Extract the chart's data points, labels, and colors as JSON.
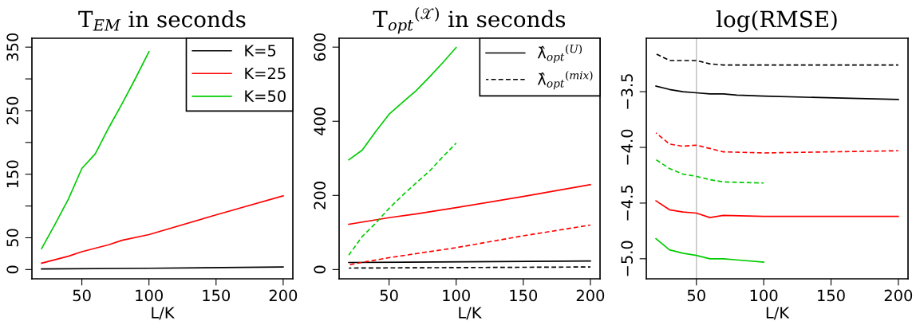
{
  "chart_data": [
    {
      "type": "line",
      "title": "T$_{EM}$ in seconds",
      "xlabel": "L/K",
      "xlim": [
        12.8,
        207.2
      ],
      "xticks": [
        50,
        100,
        150,
        200
      ],
      "ylim": [
        -14.6,
        364
      ],
      "yticks": [
        0,
        50,
        {
          "value": 100,
          "label": null
        },
        150,
        {
          "value": 200,
          "label": null
        },
        250,
        {
          "value": 300,
          "label": null
        },
        350
      ],
      "grid": false,
      "legend": "top right",
      "series": [
        {
          "name": "K=5",
          "color": "#000000",
          "line_style": "solid",
          "x": [
            20,
            100,
            200
          ],
          "values": [
            1,
            2,
            4
          ]
        },
        {
          "name": "K=25",
          "color": "#ff0000",
          "line_style": "solid",
          "x": [
            20,
            40,
            50,
            70,
            80,
            100,
            150,
            200
          ],
          "values": [
            10,
            21,
            28,
            39,
            46,
            55,
            86,
            116
          ]
        },
        {
          "name": "K=50",
          "color": "#00cc00",
          "line_style": "solid",
          "x": [
            20,
            30,
            40,
            50,
            60,
            70,
            80,
            90,
            100
          ],
          "values": [
            33,
            71,
            111,
            159,
            182,
            223,
            261,
            301,
            343
          ]
        }
      ]
    },
    {
      "type": "line",
      "title": "T$_{opt}$$^{(𝒳)}$ in seconds",
      "xlabel": "L/K",
      "xlim": [
        12.8,
        207.2
      ],
      "xticks": [
        50,
        100,
        150,
        200
      ],
      "ylim": [
        -25,
        624
      ],
      "yticks": [
        0,
        200,
        400,
        600
      ],
      "grid": false,
      "legend": "top right",
      "series": [
        {
          "name": "λ̂$_{opt}$$^{(U)}$",
          "color": "#000000",
          "line_style": "solid",
          "x": [
            20,
            200
          ],
          "values": [
            19,
            23
          ]
        },
        {
          "name": "λ̂$_{opt}$$^{(mix)}$",
          "color": "#000000",
          "line_style": "dashed",
          "x": [
            20,
            200
          ],
          "values": [
            4,
            7
          ]
        },
        {
          "color": "#ff0000",
          "line_style": "solid",
          "x": [
            20,
            50,
            70,
            100,
            150,
            200
          ],
          "values": [
            122,
            140,
            150,
            167,
            197,
            229
          ]
        },
        {
          "color": "#ff0000",
          "line_style": "dashed",
          "x": [
            20,
            50,
            100,
            150,
            200
          ],
          "values": [
            13,
            32,
            59,
            91,
            120
          ]
        },
        {
          "color": "#00cc00",
          "line_style": "solid",
          "x": [
            20,
            30,
            40,
            50,
            60,
            70,
            80,
            90,
            100
          ],
          "values": [
            296,
            322,
            372,
            419,
            451,
            482,
            519,
            558,
            599
          ]
        },
        {
          "color": "#00cc00",
          "line_style": "dashed",
          "x": [
            20,
            30,
            40,
            50,
            60,
            70,
            80,
            90,
            100
          ],
          "values": [
            39,
            89,
            125,
            165,
            200,
            233,
            265,
            304,
            341
          ]
        }
      ]
    },
    {
      "type": "line",
      "title": "log(RMSE)",
      "xlabel": "L/K",
      "xlim": [
        12.8,
        207.2
      ],
      "xticks": [
        50,
        100,
        150,
        200
      ],
      "ylim": [
        -5.18,
        -3.02
      ],
      "yticks": [
        {
          "value": -3.5,
          "label": "−3.5"
        },
        {
          "value": -4.0,
          "label": "−4.0"
        },
        {
          "value": -4.5,
          "label": "−4.5"
        },
        {
          "value": -5.0,
          "label": "−5.0"
        }
      ],
      "grid": false,
      "legend": false,
      "ref_lines": [
        {
          "axis": "x",
          "value": 50,
          "color": "#bebebe"
        }
      ],
      "series": [
        {
          "color": "#000000",
          "line_style": "dashed",
          "x": [
            20,
            30,
            50,
            60,
            70,
            200
          ],
          "values": [
            -3.16,
            -3.22,
            -3.22,
            -3.25,
            -3.26,
            -3.26
          ]
        },
        {
          "color": "#000000",
          "line_style": "solid",
          "x": [
            20,
            30,
            40,
            50,
            60,
            70,
            80,
            100,
            200
          ],
          "values": [
            -3.45,
            -3.48,
            -3.5,
            -3.51,
            -3.52,
            -3.52,
            -3.53,
            -3.54,
            -3.57
          ]
        },
        {
          "color": "#ff0000",
          "line_style": "dashed",
          "x": [
            20,
            30,
            40,
            50,
            60,
            70,
            100,
            200
          ],
          "values": [
            -3.87,
            -3.97,
            -3.99,
            -3.98,
            -4.01,
            -4.04,
            -4.05,
            -4.03
          ]
        },
        {
          "color": "#00cc00",
          "line_style": "dashed",
          "x": [
            20,
            30,
            40,
            50,
            60,
            70,
            100
          ],
          "values": [
            -4.11,
            -4.19,
            -4.24,
            -4.26,
            -4.29,
            -4.31,
            -4.32
          ]
        },
        {
          "color": "#ff0000",
          "line_style": "solid",
          "x": [
            20,
            30,
            40,
            50,
            60,
            70,
            100,
            200
          ],
          "values": [
            -4.48,
            -4.56,
            -4.58,
            -4.59,
            -4.63,
            -4.61,
            -4.62,
            -4.62
          ]
        },
        {
          "color": "#00cc00",
          "line_style": "solid",
          "x": [
            20,
            30,
            40,
            50,
            60,
            70,
            80,
            100
          ],
          "values": [
            -4.82,
            -4.92,
            -4.95,
            -4.97,
            -5.0,
            -5.0,
            -5.01,
            -5.03
          ]
        }
      ]
    }
  ]
}
